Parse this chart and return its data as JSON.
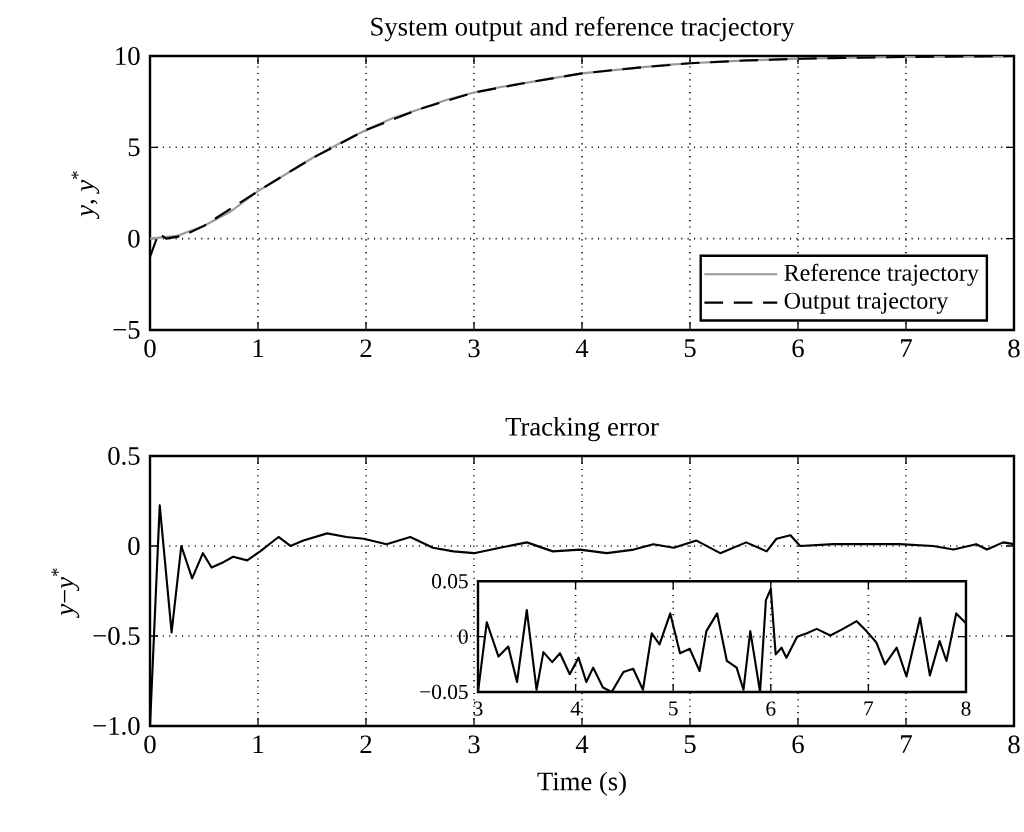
{
  "chart_data": [
    {
      "type": "line",
      "title": "System output and reference tracjectory",
      "ylabel": "*y*, *y*$^{*}$",
      "xlim": [
        0,
        8
      ],
      "ylim": [
        -5,
        10
      ],
      "xticks": [
        0,
        1,
        2,
        3,
        4,
        5,
        6,
        7,
        8
      ],
      "yticks": [
        {
          "value": -5,
          "label": "−5"
        },
        0,
        5,
        10
      ],
      "grid": true,
      "legend": "bottom right",
      "series": [
        {
          "name": "Reference trajectory",
          "color": "#999999",
          "line_style": "solid",
          "x": [
            0,
            0.25,
            0.5,
            0.75,
            1,
            1.25,
            1.5,
            1.75,
            2,
            2.25,
            2.5,
            2.75,
            3,
            3.25,
            3.5,
            3.75,
            4,
            4.25,
            4.5,
            4.75,
            5,
            5.25,
            5.5,
            5.75,
            6,
            6.25,
            6.5,
            6.75,
            7,
            7.25,
            7.5,
            7.75,
            8
          ],
          "values": [
            0,
            0.15,
            0.7,
            1.5,
            2.6,
            3.5,
            4.4,
            5.2,
            5.95,
            6.6,
            7.1,
            7.6,
            8.0,
            8.3,
            8.55,
            8.8,
            9.05,
            9.2,
            9.35,
            9.5,
            9.6,
            9.68,
            9.75,
            9.8,
            9.85,
            9.88,
            9.9,
            9.93,
            9.95,
            9.96,
            9.97,
            9.98,
            10
          ]
        },
        {
          "name": "Output trajectory",
          "color": "#000000",
          "line_style": "dashed",
          "x": [
            0,
            0.08,
            0.15,
            0.3,
            0.5,
            1,
            1.5,
            2,
            2.5,
            3,
            3.5,
            4,
            4.5,
            5,
            5.5,
            6,
            6.5,
            7,
            7.5,
            8
          ],
          "values": [
            -1,
            0.3,
            0.0,
            0.15,
            0.7,
            2.6,
            4.4,
            5.95,
            7.1,
            8.0,
            8.55,
            9.05,
            9.35,
            9.6,
            9.75,
            9.85,
            9.9,
            9.95,
            9.97,
            10
          ]
        }
      ]
    },
    {
      "type": "line",
      "title": "Tracking error",
      "xlabel": "Time (s)",
      "ylabel": "*y*−*y*$^{*}$",
      "xlim": [
        0,
        8
      ],
      "ylim": [
        -1.0,
        0.5
      ],
      "xticks": [
        0,
        1,
        2,
        3,
        4,
        5,
        6,
        7,
        8
      ],
      "yticks": [
        {
          "value": -1.0,
          "label": "−1.0"
        },
        {
          "value": -0.5,
          "label": "−0.5"
        },
        0,
        0.5
      ],
      "grid": true,
      "series": [
        {
          "color": "#000000",
          "x": [
            0,
            0.09,
            0.2,
            0.29,
            0.39,
            0.49,
            0.57,
            0.68,
            0.77,
            0.9,
            1.02,
            1.19,
            1.3,
            1.42,
            1.64,
            1.82,
            1.98,
            2.19,
            2.41,
            2.62,
            2.81,
            3.0,
            3.24,
            3.49,
            3.73,
            3.98,
            4.23,
            4.48,
            4.66,
            4.85,
            5.06,
            5.28,
            5.52,
            5.71,
            5.8,
            5.93,
            6.02,
            6.33,
            6.64,
            6.94,
            7.25,
            7.44,
            7.65,
            7.75,
            7.9,
            8.0
          ],
          "values": [
            -1.0,
            0.226,
            -0.48,
            0.0,
            -0.18,
            -0.04,
            -0.12,
            -0.09,
            -0.06,
            -0.08,
            -0.03,
            0.05,
            0.0,
            0.03,
            0.07,
            0.05,
            0.04,
            0.01,
            0.05,
            -0.01,
            -0.03,
            -0.04,
            -0.01,
            0.02,
            -0.03,
            -0.02,
            -0.04,
            -0.02,
            0.01,
            -0.01,
            0.03,
            -0.04,
            0.02,
            -0.03,
            0.04,
            0.06,
            0.0,
            0.01,
            0.01,
            0.01,
            0.0,
            -0.02,
            0.01,
            -0.02,
            0.02,
            0.01
          ]
        }
      ]
    },
    {
      "type": "line",
      "xlim": [
        3,
        8
      ],
      "ylim": [
        -0.05,
        0.05
      ],
      "xticks": [
        3,
        4,
        5,
        6,
        7,
        8
      ],
      "yticks": [
        {
          "value": -0.05,
          "label": "−0.05"
        },
        0,
        0.05
      ],
      "grid": true,
      "series": [
        {
          "color": "#000000",
          "x": [
            3.0,
            3.09,
            3.21,
            3.31,
            3.4,
            3.5,
            3.6,
            3.67,
            3.76,
            3.84,
            3.94,
            4.03,
            4.11,
            4.18,
            4.28,
            4.37,
            4.49,
            4.59,
            4.69,
            4.78,
            4.86,
            4.97,
            5.07,
            5.17,
            5.27,
            5.34,
            5.45,
            5.55,
            5.65,
            5.72,
            5.79,
            5.89,
            5.95,
            6.0,
            6.05,
            6.11,
            6.16,
            6.27,
            6.37,
            6.47,
            6.61,
            6.74,
            6.88,
            6.98,
            7.08,
            7.17,
            7.29,
            7.39,
            7.53,
            7.63,
            7.73,
            7.8,
            7.9,
            8.0
          ],
          "values": [
            -0.05,
            0.013,
            -0.018,
            -0.009,
            -0.041,
            0.024,
            -0.048,
            -0.014,
            -0.023,
            -0.015,
            -0.034,
            -0.019,
            -0.041,
            -0.028,
            -0.046,
            -0.05,
            -0.032,
            -0.029,
            -0.048,
            0.003,
            -0.007,
            0.021,
            -0.015,
            -0.011,
            -0.031,
            0.005,
            0.021,
            -0.022,
            -0.028,
            -0.048,
            0.005,
            -0.05,
            0.033,
            0.043,
            -0.016,
            -0.01,
            -0.019,
            0.0,
            0.003,
            0.007,
            0.001,
            0.007,
            0.014,
            0.005,
            -0.005,
            -0.025,
            -0.01,
            -0.036,
            0.017,
            -0.035,
            -0.004,
            -0.022,
            0.021,
            0.012
          ]
        }
      ]
    }
  ]
}
